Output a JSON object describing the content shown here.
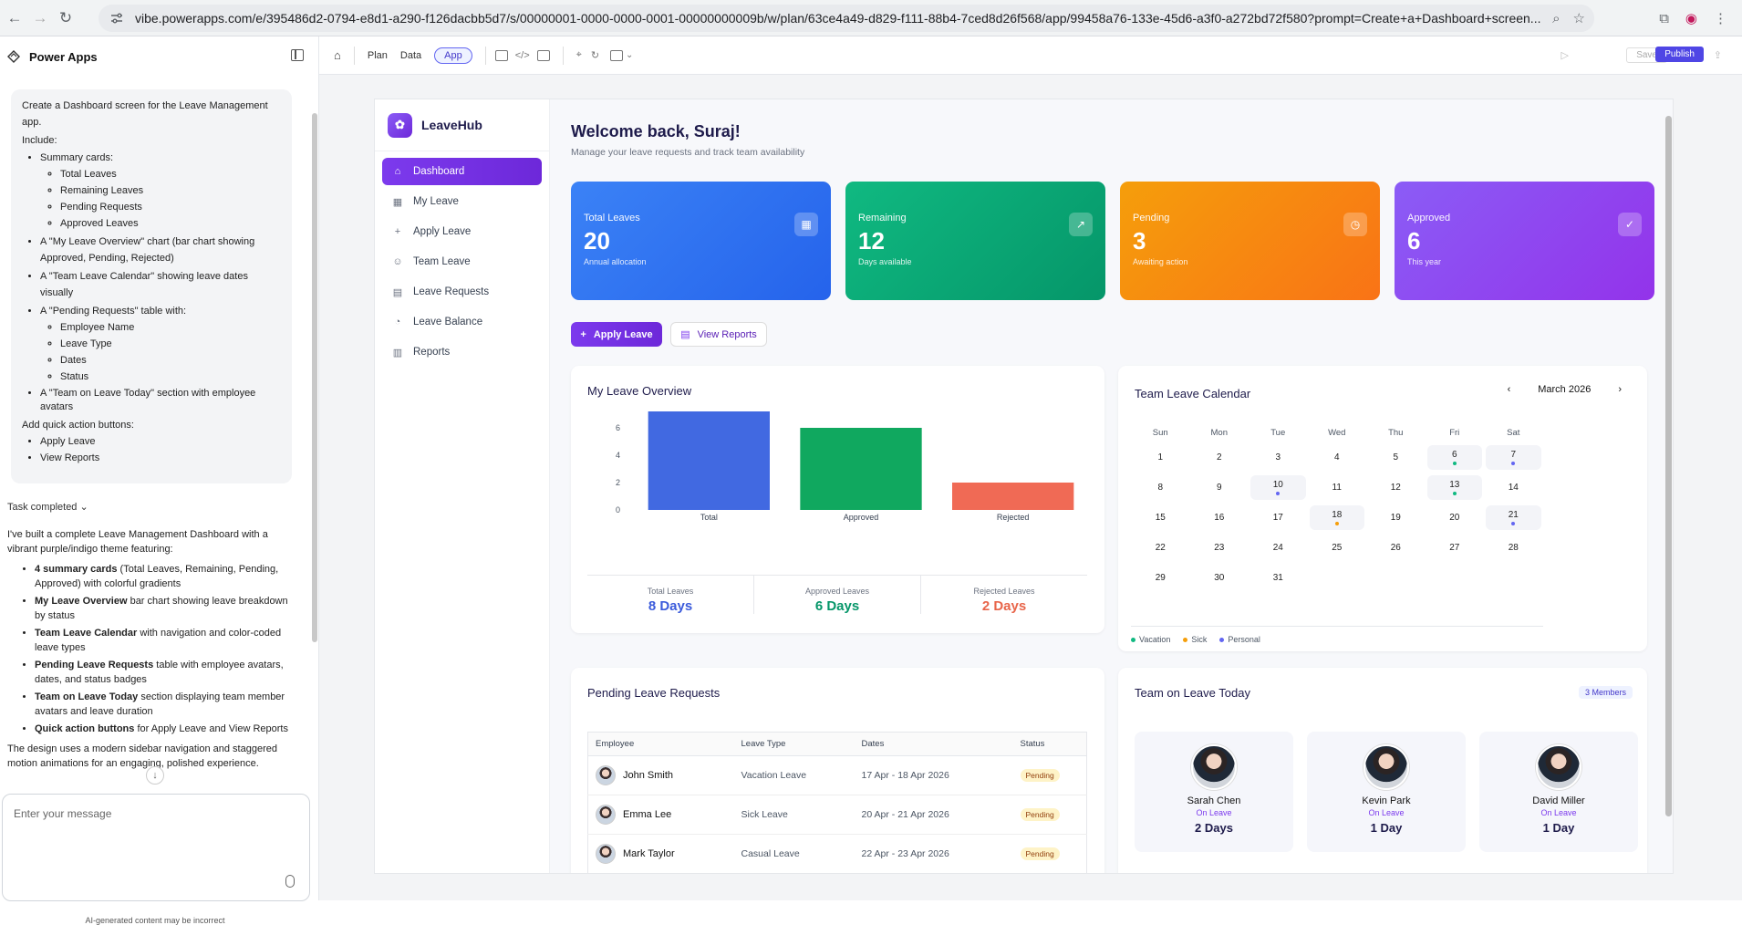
{
  "browser": {
    "url": "vibe.powerapps.com/e/395486d2-0794-e8d1-a290-f126dacbb5d7/s/00000001-0000-0000-0001-00000000009b/w/plan/63ce4a49-d829-f111-88b4-7ced8d26f568/app/99458a76-133e-45d6-a3f0-a272bd72f580?prompt=Create+a+Dashboard+screen..."
  },
  "left_panel": {
    "title": "Power Apps",
    "prompt": {
      "line1": "Create a Dashboard screen for the Leave Management app.",
      "include": "Include:",
      "items": [
        {
          "text": "Summary cards:",
          "sub": [
            "Total Leaves",
            "Remaining Leaves",
            "Pending Requests",
            "Approved Leaves"
          ]
        },
        {
          "text": "A \"My Leave Overview\" chart (bar chart showing Approved, Pending, Rejected)",
          "sub": []
        },
        {
          "text": "A \"Team Leave Calendar\" showing leave dates visually",
          "sub": []
        },
        {
          "text": "A \"Pending Requests\" table with:",
          "sub": [
            "Employee Name",
            "Leave Type",
            "Dates",
            "Status"
          ]
        },
        {
          "text": "A \"Team on Leave Today\" section with employee avatars",
          "sub": []
        }
      ],
      "quick": "Add quick action buttons:",
      "quick_items": [
        "Apply Leave",
        "View Reports"
      ]
    },
    "task_status": "Task completed",
    "reply_intro": "I've built a complete Leave Management Dashboard with a vibrant purple/indigo theme featuring:",
    "reply_items": [
      {
        "bold": "4 summary cards",
        "rest": " (Total Leaves, Remaining, Pending, Approved) with colorful gradients"
      },
      {
        "bold": "My Leave Overview",
        "rest": " bar chart showing leave breakdown by status"
      },
      {
        "bold": "Team Leave Calendar",
        "rest": " with navigation and color-coded leave types"
      },
      {
        "bold": "Pending Leave Requests",
        "rest": " table with employee avatars, dates, and status badges"
      },
      {
        "bold": "Team on Leave Today",
        "rest": " section displaying team member avatars and leave duration"
      },
      {
        "bold": "Quick action buttons",
        "rest": " for Apply Leave and View Reports"
      }
    ],
    "reply_outro": "The design uses a modern sidebar navigation and staggered motion animations for an engaging, polished experience.",
    "message_placeholder": "Enter your message",
    "disclaimer": "AI-generated content may be incorrect"
  },
  "toolbar": {
    "plan": "Plan",
    "data": "Data",
    "app": "App",
    "save": "Save",
    "publish": "Publish"
  },
  "app": {
    "brand": "LeaveHub",
    "nav": [
      {
        "icon": "⌂",
        "label": "Dashboard",
        "name": "home-icon"
      },
      {
        "icon": "▦",
        "label": "My Leave",
        "name": "calendar-icon"
      },
      {
        "icon": "+",
        "label": "Apply Leave",
        "name": "plus-icon"
      },
      {
        "icon": "☺",
        "label": "Team Leave",
        "name": "users-icon"
      },
      {
        "icon": "▤",
        "label": "Leave Requests",
        "name": "clipboard-icon"
      },
      {
        "icon": "◔",
        "label": "Leave Balance",
        "name": "pie-icon"
      },
      {
        "icon": "▥",
        "label": "Reports",
        "name": "bar-chart-icon"
      }
    ],
    "welcome": "Welcome back, Suraj!",
    "subtitle": "Manage your leave requests and track team availability",
    "cards": [
      {
        "label": "Total Leaves",
        "value": "20",
        "sub": "Annual allocation",
        "icon": "▦",
        "icon_name": "calendar-icon",
        "from": "#3b82f6",
        "to": "#2563eb"
      },
      {
        "label": "Remaining",
        "value": "12",
        "sub": "Days available",
        "icon": "↗",
        "icon_name": "trending-up-icon",
        "from": "#10b981",
        "to": "#059669"
      },
      {
        "label": "Pending",
        "value": "3",
        "sub": "Awaiting action",
        "icon": "◷",
        "icon_name": "clock-icon",
        "from": "#f59e0b",
        "to": "#f97316"
      },
      {
        "label": "Approved",
        "value": "6",
        "sub": "This year",
        "icon": "✓",
        "icon_name": "check-circle-icon",
        "from": "#8b5cf6",
        "to": "#9333ea"
      }
    ],
    "apply_btn": "Apply Leave",
    "reports_btn": "View Reports",
    "overview_title": "My Leave Overview",
    "stats": [
      {
        "label": "Total Leaves",
        "value": "8 Days",
        "color": "#3b5bdb"
      },
      {
        "label": "Approved Leaves",
        "value": "6 Days",
        "color": "#059669"
      },
      {
        "label": "Rejected Leaves",
        "value": "2 Days",
        "color": "#e8654a"
      }
    ],
    "calendar_title": "Team Leave Calendar",
    "calendar_month": "March 2026",
    "weekdays": [
      "Sun",
      "Mon",
      "Tue",
      "Wed",
      "Thu",
      "Fri",
      "Sat"
    ],
    "calendar_weeks": [
      [
        "1",
        "2",
        "3",
        "4",
        "5",
        "6",
        "7"
      ],
      [
        "8",
        "9",
        "10",
        "11",
        "12",
        "13",
        "14"
      ],
      [
        "15",
        "16",
        "17",
        "18",
        "19",
        "20",
        "21"
      ],
      [
        "22",
        "23",
        "24",
        "25",
        "26",
        "27",
        "28"
      ],
      [
        "29",
        "30",
        "31",
        "",
        "",
        "",
        ""
      ]
    ],
    "calendar_events": {
      "6": "vacation",
      "7": "personal",
      "10": "personal",
      "13": "vacation",
      "18": "sick",
      "21": "personal"
    },
    "legend": [
      {
        "label": "Vacation",
        "color": "#10b981"
      },
      {
        "label": "Sick",
        "color": "#f59e0b"
      },
      {
        "label": "Personal",
        "color": "#6366f1"
      }
    ],
    "pending_title": "Pending Leave Requests",
    "pending_headers": [
      "Employee",
      "Leave Type",
      "Dates",
      "Status"
    ],
    "pending_rows": [
      {
        "name": "John Smith",
        "type": "Vacation Leave",
        "dates": "17 Apr - 18 Apr 2026",
        "status": "Pending"
      },
      {
        "name": "Emma Lee",
        "type": "Sick Leave",
        "dates": "20 Apr - 21 Apr 2026",
        "status": "Pending"
      },
      {
        "name": "Mark Taylor",
        "type": "Casual Leave",
        "dates": "22 Apr - 23 Apr 2026",
        "status": "Pending"
      }
    ],
    "team_title": "Team on Leave Today",
    "team_badge": "3 Members",
    "team": [
      {
        "name": "Sarah Chen",
        "status": "On Leave",
        "days": "2 Days"
      },
      {
        "name": "Kevin Park",
        "status": "On Leave",
        "days": "1 Day"
      },
      {
        "name": "David Miller",
        "status": "On Leave",
        "days": "1 Day"
      }
    ]
  },
  "chart_data": {
    "type": "bar",
    "categories": [
      "Total",
      "Approved",
      "Rejected"
    ],
    "values": [
      8,
      6,
      2
    ],
    "colors": [
      "#4169e1",
      "#10a85f",
      "#f06a55"
    ],
    "ylim": [
      0,
      8
    ],
    "yticks": [
      0,
      2,
      4,
      6,
      8
    ]
  }
}
